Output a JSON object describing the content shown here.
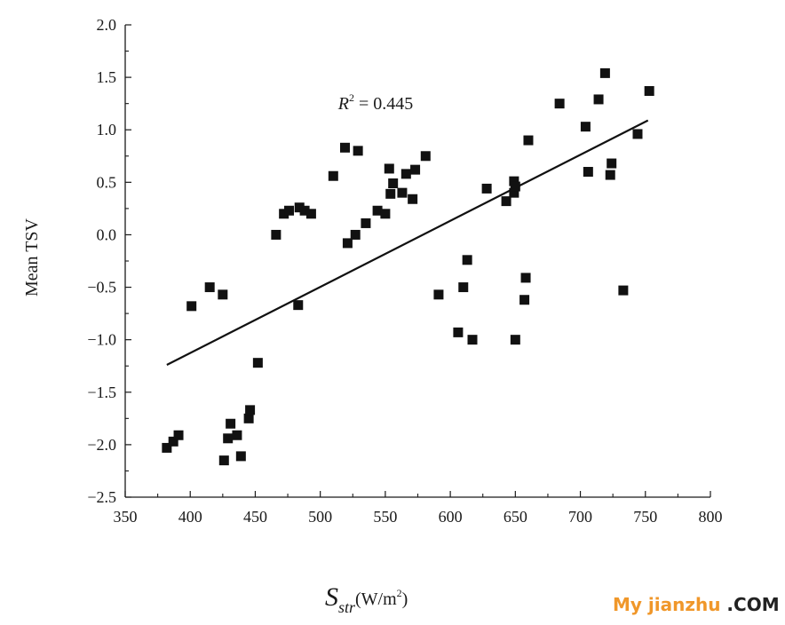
{
  "chart_data": {
    "type": "scatter",
    "ylabel": "Mean TSV",
    "xlabel": {
      "symbol": "S",
      "subscript": "str",
      "unit_open": "(W/m",
      "unit_sup": "2",
      "unit_close": ")"
    },
    "xlim": [
      350,
      800
    ],
    "ylim": [
      -2.5,
      2.0
    ],
    "xticks": [
      350,
      400,
      450,
      500,
      550,
      600,
      650,
      700,
      750,
      800
    ],
    "yticks": [
      2.0,
      1.5,
      1.0,
      0.5,
      0.0,
      -0.5,
      -1.0,
      -1.5,
      -2.0,
      -2.5
    ],
    "ytick_labels": [
      "2.0",
      "1.5",
      "1.0",
      "0.5",
      "0.0",
      "−0.5",
      "−1.0",
      "−1.5",
      "−2.0",
      "−2.5"
    ],
    "grid": false,
    "legend": "none",
    "annotation": {
      "variable": "R",
      "sup": "2",
      "text": " = 0.445",
      "x": 582,
      "y": 1.3
    },
    "trendline": {
      "x": [
        382,
        752
      ],
      "y": [
        -1.24,
        1.09
      ]
    },
    "points": {
      "x": [
        382,
        387,
        391,
        401,
        415,
        425,
        426,
        429,
        431,
        436,
        439,
        445,
        446,
        452,
        466,
        472,
        476,
        483,
        484,
        488,
        493,
        510,
        519,
        521,
        527,
        529,
        535,
        544,
        550,
        553,
        554,
        556,
        563,
        566,
        571,
        573,
        581,
        591,
        606,
        610,
        613,
        617,
        628,
        643,
        649,
        649,
        650,
        650,
        657,
        658,
        660,
        684,
        704,
        706,
        714,
        719,
        723,
        724,
        733,
        744,
        753
      ],
      "y": [
        -2.03,
        -1.97,
        -1.91,
        -0.68,
        -0.5,
        -0.57,
        -2.15,
        -1.94,
        -1.8,
        -1.91,
        -2.11,
        -1.75,
        -1.67,
        -1.22,
        0.0,
        0.2,
        0.23,
        -0.67,
        0.26,
        0.23,
        0.2,
        0.56,
        0.83,
        -0.08,
        0.0,
        0.8,
        0.11,
        0.23,
        0.2,
        0.63,
        0.39,
        0.49,
        0.4,
        0.58,
        0.34,
        0.62,
        0.75,
        -0.57,
        -0.93,
        -0.5,
        -0.24,
        -1.0,
        0.44,
        0.32,
        0.4,
        0.51,
        0.46,
        -1.0,
        -0.62,
        -0.41,
        0.9,
        1.25,
        1.03,
        0.6,
        1.29,
        1.54,
        0.57,
        0.68,
        -0.53,
        0.96,
        1.37
      ]
    },
    "colors": {
      "marker": "#111111",
      "line": "#111111",
      "axis": "#1a1a1a"
    }
  },
  "watermark": {
    "main": "My jianzhu",
    "suffix": " .COM",
    "color": "#f0972a"
  }
}
